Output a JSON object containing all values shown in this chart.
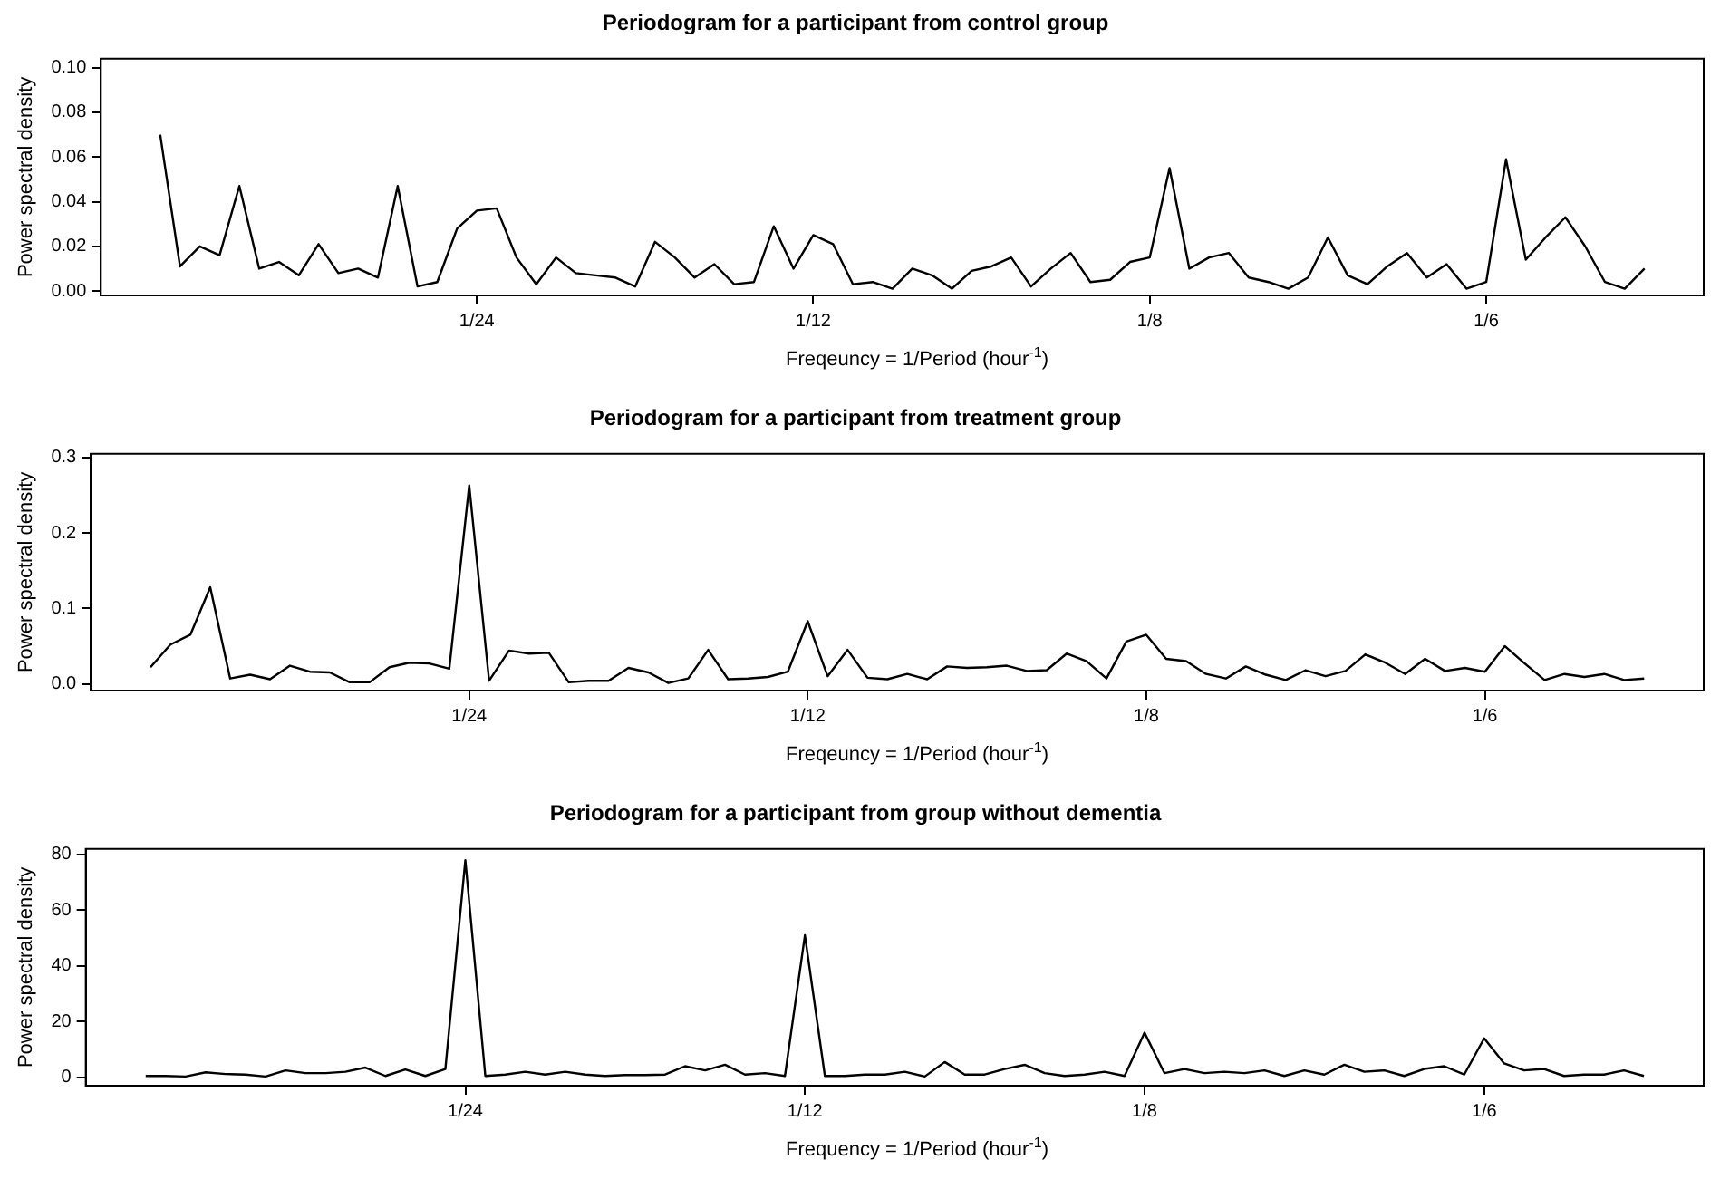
{
  "chart_data": [
    {
      "type": "line",
      "title": "Periodogram for a participant from control group",
      "xlabel": "Freqeuncy = 1/Period (hour$^{-1}$)",
      "ylabel": "Power spectral density",
      "x": [
        0.00245,
        0.0049,
        0.00735,
        0.0098,
        0.01225,
        0.01471,
        0.01716,
        0.01961,
        0.02206,
        0.02451,
        0.02696,
        0.02941,
        0.03186,
        0.03431,
        0.03676,
        0.03922,
        0.04167,
        0.04412,
        0.04657,
        0.04902,
        0.05147,
        0.05392,
        0.05637,
        0.05882,
        0.06127,
        0.06373,
        0.06618,
        0.06863,
        0.07108,
        0.07353,
        0.07598,
        0.07843,
        0.08088,
        0.08333,
        0.08578,
        0.08824,
        0.09069,
        0.09314,
        0.09559,
        0.09804,
        0.10049,
        0.10294,
        0.10539,
        0.10784,
        0.11029,
        0.11275,
        0.1152,
        0.11765,
        0.1201,
        0.12255,
        0.125,
        0.12745,
        0.1299,
        0.13235,
        0.1348,
        0.13725,
        0.13971,
        0.14216,
        0.14461,
        0.14706,
        0.14951,
        0.15196,
        0.15441,
        0.15686,
        0.15931,
        0.16176,
        0.16422,
        0.16667,
        0.16912,
        0.17157,
        0.17402,
        0.17647,
        0.17892,
        0.18137,
        0.18382,
        0.18627
      ],
      "series": [
        {
          "color": "#000000",
          "values": [
            0.07,
            0.011,
            0.02,
            0.016,
            0.047,
            0.01,
            0.013,
            0.007,
            0.021,
            0.008,
            0.01,
            0.006,
            0.047,
            0.002,
            0.004,
            0.028,
            0.036,
            0.037,
            0.015,
            0.003,
            0.015,
            0.008,
            0.007,
            0.006,
            0.002,
            0.022,
            0.015,
            0.006,
            0.012,
            0.003,
            0.004,
            0.029,
            0.01,
            0.025,
            0.021,
            0.003,
            0.004,
            0.001,
            0.01,
            0.007,
            0.001,
            0.009,
            0.011,
            0.015,
            0.002,
            0.01,
            0.017,
            0.004,
            0.005,
            0.013,
            0.015,
            0.055,
            0.01,
            0.015,
            0.017,
            0.006,
            0.004,
            0.001,
            0.006,
            0.024,
            0.007,
            0.003,
            0.011,
            0.017,
            0.006,
            0.012,
            0.001,
            0.004,
            0.059,
            0.014,
            0.024,
            0.033,
            0.02,
            0.004,
            0.001,
            0.01
          ]
        }
      ],
      "xlim": [
        -0.0049,
        0.1936
      ],
      "ylim": [
        -0.002,
        0.104
      ],
      "xticks": [
        {
          "value": 0.04167,
          "label": "1/24"
        },
        {
          "value": 0.08333,
          "label": "1/12"
        },
        {
          "value": 0.125,
          "label": "1/8"
        },
        {
          "value": 0.16667,
          "label": "1/6"
        }
      ],
      "yticks": [
        {
          "value": 0,
          "label": "0.00"
        },
        {
          "value": 0.02,
          "label": "0.02"
        },
        {
          "value": 0.04,
          "label": "0.04"
        },
        {
          "value": 0.06,
          "label": "0.06"
        },
        {
          "value": 0.08,
          "label": "0.08"
        },
        {
          "value": 0.1,
          "label": "0.10"
        }
      ]
    },
    {
      "type": "line",
      "title": "Periodogram for a participant from treatment group",
      "xlabel": "Freqeuncy = 1/Period (hour$^{-1}$)",
      "ylabel": "Power spectral density",
      "x": [
        0.00245,
        0.0049,
        0.00735,
        0.0098,
        0.01225,
        0.01471,
        0.01716,
        0.01961,
        0.02206,
        0.02451,
        0.02696,
        0.02941,
        0.03186,
        0.03431,
        0.03676,
        0.03922,
        0.04167,
        0.04412,
        0.04657,
        0.04902,
        0.05147,
        0.05392,
        0.05637,
        0.05882,
        0.06127,
        0.06373,
        0.06618,
        0.06863,
        0.07108,
        0.07353,
        0.07598,
        0.07843,
        0.08088,
        0.08333,
        0.08578,
        0.08824,
        0.09069,
        0.09314,
        0.09559,
        0.09804,
        0.10049,
        0.10294,
        0.10539,
        0.10784,
        0.11029,
        0.11275,
        0.1152,
        0.11765,
        0.1201,
        0.12255,
        0.125,
        0.12745,
        0.1299,
        0.13235,
        0.1348,
        0.13725,
        0.13971,
        0.14216,
        0.14461,
        0.14706,
        0.14951,
        0.15196,
        0.15441,
        0.15686,
        0.15931,
        0.16176,
        0.16422,
        0.16667,
        0.16912,
        0.17157,
        0.17402,
        0.17647,
        0.17892,
        0.18137,
        0.18382,
        0.18627
      ],
      "series": [
        {
          "color": "#000000",
          "values": [
            0.022,
            0.052,
            0.065,
            0.128,
            0.007,
            0.012,
            0.006,
            0.024,
            0.016,
            0.015,
            0.002,
            0.002,
            0.022,
            0.028,
            0.027,
            0.02,
            0.263,
            0.004,
            0.044,
            0.04,
            0.041,
            0.002,
            0.004,
            0.004,
            0.021,
            0.015,
            0.001,
            0.007,
            0.045,
            0.006,
            0.007,
            0.009,
            0.016,
            0.083,
            0.01,
            0.045,
            0.008,
            0.006,
            0.013,
            0.006,
            0.023,
            0.021,
            0.022,
            0.024,
            0.017,
            0.018,
            0.04,
            0.03,
            0.007,
            0.056,
            0.065,
            0.033,
            0.03,
            0.013,
            0.007,
            0.023,
            0.012,
            0.005,
            0.018,
            0.01,
            0.017,
            0.039,
            0.028,
            0.013,
            0.033,
            0.017,
            0.021,
            0.016,
            0.05,
            0.027,
            0.005,
            0.013,
            0.009,
            0.013,
            0.005,
            0.007
          ]
        }
      ],
      "xlim": [
        -0.0049,
        0.1936
      ],
      "ylim": [
        -0.009,
        0.305
      ],
      "xticks": [
        {
          "value": 0.04167,
          "label": "1/24"
        },
        {
          "value": 0.08333,
          "label": "1/12"
        },
        {
          "value": 0.125,
          "label": "1/8"
        },
        {
          "value": 0.16667,
          "label": "1/6"
        }
      ],
      "yticks": [
        {
          "value": 0,
          "label": "0.0"
        },
        {
          "value": 0.1,
          "label": "0.1"
        },
        {
          "value": 0.2,
          "label": "0.2"
        },
        {
          "value": 0.3,
          "label": "0.3"
        }
      ]
    },
    {
      "type": "line",
      "title": "Periodogram for a participant from group without dementia",
      "xlabel": "Frequency = 1/Period (hour$^{-1}$)",
      "ylabel": "Power spectral density",
      "x": [
        0.00245,
        0.0049,
        0.00735,
        0.0098,
        0.01225,
        0.01471,
        0.01716,
        0.01961,
        0.02206,
        0.02451,
        0.02696,
        0.02941,
        0.03186,
        0.03431,
        0.03676,
        0.03922,
        0.04167,
        0.04412,
        0.04657,
        0.04902,
        0.05147,
        0.05392,
        0.05637,
        0.05882,
        0.06127,
        0.06373,
        0.06618,
        0.06863,
        0.07108,
        0.07353,
        0.07598,
        0.07843,
        0.08088,
        0.08333,
        0.08578,
        0.08824,
        0.09069,
        0.09314,
        0.09559,
        0.09804,
        0.10049,
        0.10294,
        0.10539,
        0.10784,
        0.11029,
        0.11275,
        0.1152,
        0.11765,
        0.1201,
        0.12255,
        0.125,
        0.12745,
        0.1299,
        0.13235,
        0.1348,
        0.13725,
        0.13971,
        0.14216,
        0.14461,
        0.14706,
        0.14951,
        0.15196,
        0.15441,
        0.15686,
        0.15931,
        0.16176,
        0.16422,
        0.16667,
        0.16912,
        0.17157,
        0.17402,
        0.17647,
        0.17892,
        0.18137,
        0.18382,
        0.18627
      ],
      "series": [
        {
          "color": "#000000",
          "values": [
            0.5,
            0.5,
            0.3,
            1.8,
            1.2,
            1,
            0.3,
            2.5,
            1.5,
            1.5,
            2,
            3.5,
            0.5,
            2.8,
            0.5,
            3,
            78,
            0.5,
            1,
            2,
            1,
            2,
            1,
            0.5,
            0.8,
            0.8,
            1,
            4,
            2.5,
            4.5,
            1,
            1.5,
            0.5,
            51,
            0.5,
            0.5,
            1,
            1,
            2,
            0.3,
            5.5,
            1,
            1,
            3,
            4.5,
            1.5,
            0.5,
            1,
            2,
            0.5,
            16,
            1.5,
            3,
            1.5,
            2,
            1.5,
            2.5,
            0.5,
            2.5,
            1,
            4.5,
            2,
            2.5,
            0.5,
            3,
            4,
            1,
            14,
            5,
            2.5,
            3,
            0.5,
            1,
            1,
            2.5,
            0.5
          ]
        }
      ],
      "xlim": [
        -0.0049,
        0.1936
      ],
      "ylim": [
        -3,
        82
      ],
      "xticks": [
        {
          "value": 0.04167,
          "label": "1/24"
        },
        {
          "value": 0.08333,
          "label": "1/12"
        },
        {
          "value": 0.125,
          "label": "1/8"
        },
        {
          "value": 0.16667,
          "label": "1/6"
        }
      ],
      "yticks": [
        0,
        20,
        40,
        60,
        80
      ]
    }
  ]
}
